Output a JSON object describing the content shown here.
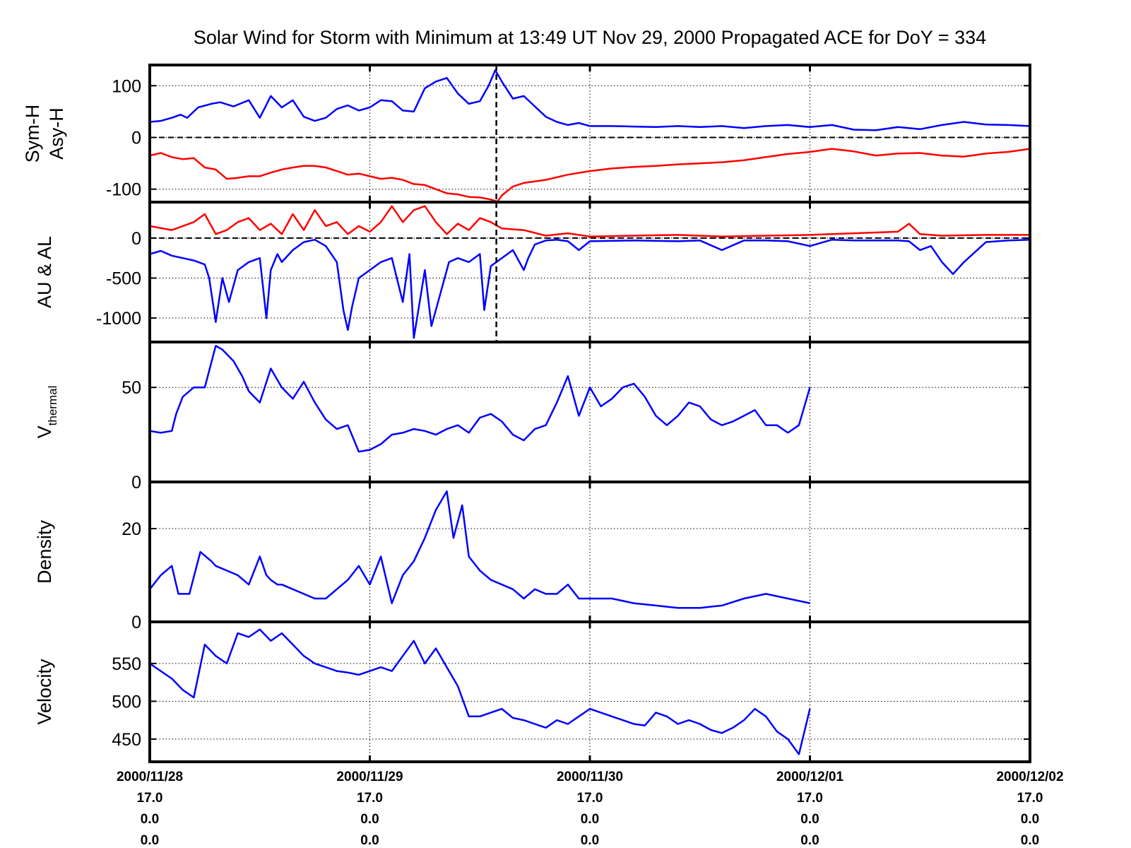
{
  "chart_data": {
    "type": "line",
    "title": "Solar Wind for Storm with Minimum at 13:49 UT Nov 29, 2000  Propagated ACE for DoY = 334",
    "x_axis": {
      "range_days": [
        0,
        4
      ],
      "ticks": [
        {
          "day": 0,
          "lines": [
            "2000/11/28",
            "17.0",
            "0.0",
            "0.0"
          ]
        },
        {
          "day": 1,
          "lines": [
            "2000/11/29",
            "17.0",
            "0.0",
            "0.0"
          ]
        },
        {
          "day": 2,
          "lines": [
            "2000/11/30",
            "17.0",
            "0.0",
            "0.0"
          ]
        },
        {
          "day": 3,
          "lines": [
            "2000/12/01",
            "17.0",
            "0.0",
            "0.0"
          ]
        },
        {
          "day": 4,
          "lines": [
            "2000/12/02",
            "17.0",
            "0.0",
            "0.0"
          ]
        }
      ],
      "grid": true
    },
    "event_marker_day": 1.575,
    "panels": [
      {
        "id": "symh",
        "ylabel_lines": [
          "Sym-H",
          "Asy-H"
        ],
        "ylim": [
          -125,
          140
        ],
        "yticks": [
          -100,
          0,
          100
        ],
        "ytick_labels": [
          "-100",
          "0",
          "100"
        ],
        "zero_line": true,
        "series": [
          {
            "color": "#0000ff",
            "x": [
              0,
              0.05,
              0.1,
              0.14,
              0.17,
              0.22,
              0.28,
              0.32,
              0.38,
              0.45,
              0.5,
              0.55,
              0.6,
              0.65,
              0.7,
              0.75,
              0.8,
              0.85,
              0.9,
              0.95,
              1.0,
              1.05,
              1.1,
              1.15,
              1.2,
              1.25,
              1.3,
              1.35,
              1.4,
              1.45,
              1.5,
              1.54,
              1.57,
              1.6,
              1.65,
              1.7,
              1.75,
              1.8,
              1.85,
              1.9,
              1.95,
              2.0,
              2.1,
              2.2,
              2.3,
              2.4,
              2.5,
              2.6,
              2.7,
              2.8,
              2.9,
              3.0,
              3.1,
              3.2,
              3.3,
              3.4,
              3.5,
              3.6,
              3.7,
              3.8,
              3.9,
              4.0
            ],
            "y": [
              30,
              32,
              38,
              44,
              38,
              58,
              65,
              68,
              60,
              72,
              38,
              80,
              58,
              72,
              40,
              32,
              38,
              55,
              62,
              52,
              58,
              72,
              70,
              52,
              50,
              95,
              108,
              115,
              85,
              65,
              70,
              100,
              130,
              108,
              75,
              80,
              60,
              40,
              30,
              24,
              28,
              22,
              22,
              21,
              20,
              22,
              20,
              22,
              18,
              22,
              24,
              20,
              24,
              15,
              14,
              20,
              16,
              24,
              30,
              25,
              24,
              22
            ]
          },
          {
            "color": "#ff0000",
            "x": [
              0,
              0.05,
              0.1,
              0.15,
              0.2,
              0.25,
              0.3,
              0.35,
              0.4,
              0.45,
              0.5,
              0.55,
              0.6,
              0.65,
              0.7,
              0.75,
              0.8,
              0.85,
              0.9,
              0.95,
              1.0,
              1.05,
              1.1,
              1.15,
              1.2,
              1.25,
              1.3,
              1.35,
              1.4,
              1.45,
              1.5,
              1.55,
              1.58,
              1.6,
              1.65,
              1.7,
              1.8,
              1.9,
              2.0,
              2.1,
              2.2,
              2.3,
              2.4,
              2.5,
              2.6,
              2.7,
              2.8,
              2.9,
              3.0,
              3.05,
              3.1,
              3.2,
              3.3,
              3.4,
              3.5,
              3.6,
              3.7,
              3.8,
              3.9,
              4.0
            ],
            "y": [
              -35,
              -30,
              -38,
              -42,
              -40,
              -58,
              -62,
              -80,
              -78,
              -75,
              -75,
              -68,
              -62,
              -58,
              -55,
              -55,
              -58,
              -65,
              -72,
              -70,
              -75,
              -80,
              -78,
              -82,
              -90,
              -92,
              -100,
              -108,
              -110,
              -115,
              -116,
              -120,
              -124,
              -112,
              -95,
              -88,
              -82,
              -72,
              -65,
              -60,
              -57,
              -55,
              -52,
              -50,
              -48,
              -44,
              -38,
              -32,
              -28,
              -25,
              -22,
              -27,
              -35,
              -31,
              -30,
              -35,
              -37,
              -31,
              -28,
              -22
            ]
          }
        ]
      },
      {
        "id": "aual",
        "ylabel_lines": [
          "AU & AL"
        ],
        "ylim": [
          -1300,
          450
        ],
        "yticks": [
          -1000,
          -500,
          0
        ],
        "ytick_labels": [
          "-1000",
          "-500",
          "0"
        ],
        "zero_line": true,
        "series": [
          {
            "color": "#0000ff",
            "x": [
              0,
              0.05,
              0.1,
              0.15,
              0.2,
              0.25,
              0.27,
              0.3,
              0.33,
              0.36,
              0.4,
              0.45,
              0.5,
              0.53,
              0.55,
              0.58,
              0.6,
              0.65,
              0.7,
              0.75,
              0.8,
              0.85,
              0.88,
              0.9,
              0.92,
              0.95,
              1.0,
              1.05,
              1.1,
              1.15,
              1.18,
              1.2,
              1.25,
              1.28,
              1.32,
              1.36,
              1.4,
              1.45,
              1.5,
              1.52,
              1.55,
              1.6,
              1.65,
              1.7,
              1.72,
              1.75,
              1.8,
              1.85,
              1.9,
              1.95,
              2.0,
              2.2,
              2.4,
              2.5,
              2.6,
              2.7,
              2.8,
              2.9,
              3.0,
              3.1,
              3.2,
              3.3,
              3.4,
              3.45,
              3.5,
              3.55,
              3.6,
              3.65,
              3.7,
              3.8,
              3.9,
              4.0
            ],
            "y": [
              -200,
              -160,
              -220,
              -250,
              -280,
              -330,
              -500,
              -1050,
              -500,
              -800,
              -400,
              -300,
              -250,
              -1000,
              -400,
              -200,
              -300,
              -150,
              -50,
              -20,
              -100,
              -300,
              -900,
              -1150,
              -850,
              -500,
              -400,
              -300,
              -250,
              -800,
              -200,
              -1250,
              -400,
              -1100,
              -700,
              -300,
              -250,
              -300,
              -200,
              -900,
              -350,
              -250,
              -150,
              -400,
              -250,
              -80,
              -30,
              -20,
              -40,
              -150,
              -40,
              -30,
              -40,
              -30,
              -150,
              -30,
              -30,
              -40,
              -100,
              -20,
              -30,
              -30,
              -30,
              -40,
              -150,
              -100,
              -300,
              -450,
              -300,
              -50,
              -30,
              -20
            ]
          },
          {
            "color": "#ff0000",
            "x": [
              0,
              0.1,
              0.2,
              0.25,
              0.3,
              0.35,
              0.4,
              0.45,
              0.5,
              0.55,
              0.6,
              0.65,
              0.7,
              0.75,
              0.8,
              0.85,
              0.9,
              0.95,
              1.0,
              1.05,
              1.1,
              1.15,
              1.2,
              1.25,
              1.3,
              1.35,
              1.4,
              1.45,
              1.5,
              1.55,
              1.6,
              1.7,
              1.8,
              1.9,
              2.0,
              2.2,
              2.4,
              2.6,
              2.8,
              3.0,
              3.2,
              3.4,
              3.45,
              3.5,
              3.6,
              3.8,
              4.0
            ],
            "y": [
              150,
              100,
              200,
              300,
              50,
              100,
              200,
              250,
              100,
              180,
              50,
              300,
              100,
              350,
              150,
              200,
              50,
              150,
              80,
              200,
              400,
              200,
              350,
              400,
              200,
              50,
              180,
              100,
              250,
              200,
              120,
              100,
              30,
              60,
              20,
              30,
              40,
              20,
              30,
              40,
              60,
              80,
              180,
              50,
              30,
              40,
              40
            ]
          }
        ]
      },
      {
        "id": "vthermal",
        "ylabel_lines": [
          "V"
        ],
        "ylabel_sub": "thermal",
        "ylim": [
          0,
          74
        ],
        "yticks": [
          0,
          50
        ],
        "ytick_labels": [
          "0",
          "50"
        ],
        "zero_line": false,
        "series": [
          {
            "color": "#0000ff",
            "x": [
              0,
              0.05,
              0.1,
              0.12,
              0.15,
              0.2,
              0.25,
              0.3,
              0.33,
              0.38,
              0.42,
              0.45,
              0.5,
              0.55,
              0.6,
              0.65,
              0.7,
              0.75,
              0.8,
              0.85,
              0.9,
              0.95,
              1.0,
              1.05,
              1.1,
              1.15,
              1.2,
              1.25,
              1.3,
              1.35,
              1.4,
              1.45,
              1.5,
              1.55,
              1.6,
              1.65,
              1.7,
              1.75,
              1.8,
              1.85,
              1.9,
              1.95,
              2.0,
              2.05,
              2.1,
              2.15,
              2.2,
              2.25,
              2.3,
              2.35,
              2.4,
              2.45,
              2.5,
              2.55,
              2.6,
              2.65,
              2.7,
              2.75,
              2.8,
              2.85,
              2.9,
              2.95,
              3.0
            ],
            "y": [
              27,
              26,
              27,
              36,
              45,
              50,
              50,
              72,
              70,
              64,
              56,
              48,
              42,
              60,
              50,
              44,
              53,
              42,
              33,
              28,
              30,
              16,
              17,
              20,
              25,
              26,
              28,
              27,
              25,
              28,
              30,
              26,
              34,
              36,
              32,
              25,
              22,
              28,
              30,
              42,
              56,
              35,
              50,
              40,
              44,
              50,
              52,
              45,
              35,
              30,
              35,
              42,
              40,
              33,
              30,
              32,
              35,
              38,
              30,
              30,
              26,
              30,
              50
            ]
          }
        ]
      },
      {
        "id": "density",
        "ylabel_lines": [
          "Density"
        ],
        "ylim": [
          0,
          30
        ],
        "yticks": [
          0,
          20
        ],
        "ytick_labels": [
          "0",
          "20"
        ],
        "zero_line": false,
        "series": [
          {
            "color": "#0000ff",
            "x": [
              0,
              0.05,
              0.1,
              0.13,
              0.18,
              0.23,
              0.28,
              0.3,
              0.35,
              0.4,
              0.45,
              0.5,
              0.53,
              0.55,
              0.58,
              0.6,
              0.65,
              0.7,
              0.75,
              0.8,
              0.85,
              0.9,
              0.95,
              1.0,
              1.05,
              1.1,
              1.15,
              1.2,
              1.25,
              1.3,
              1.35,
              1.38,
              1.42,
              1.45,
              1.5,
              1.55,
              1.6,
              1.65,
              1.7,
              1.75,
              1.8,
              1.85,
              1.9,
              1.95,
              2.0,
              2.1,
              2.2,
              2.3,
              2.4,
              2.5,
              2.6,
              2.7,
              2.8,
              2.9,
              3.0
            ],
            "y": [
              7,
              10,
              12,
              6,
              6,
              15,
              13,
              12,
              11,
              10,
              8,
              14,
              10,
              9,
              8,
              8,
              7,
              6,
              5,
              5,
              7,
              9,
              12,
              8,
              14,
              4,
              10,
              13,
              18,
              24,
              28,
              18,
              25,
              14,
              11,
              9,
              8,
              7,
              5,
              7,
              6,
              6,
              8,
              5,
              5,
              5,
              4,
              3.5,
              3,
              3,
              3.5,
              5,
              6,
              5,
              4
            ]
          }
        ]
      },
      {
        "id": "velocity",
        "ylabel_lines": [
          "Velocity"
        ],
        "ylim": [
          420,
          605
        ],
        "yticks": [
          450,
          500,
          550
        ],
        "ytick_labels": [
          "450",
          "500",
          "550"
        ],
        "zero_line": false,
        "series": [
          {
            "color": "#0000ff",
            "x": [
              0,
              0.05,
              0.1,
              0.15,
              0.2,
              0.25,
              0.3,
              0.35,
              0.4,
              0.45,
              0.5,
              0.55,
              0.6,
              0.65,
              0.7,
              0.75,
              0.8,
              0.85,
              0.9,
              0.95,
              1.0,
              1.05,
              1.1,
              1.15,
              1.2,
              1.25,
              1.3,
              1.35,
              1.4,
              1.45,
              1.5,
              1.55,
              1.6,
              1.65,
              1.7,
              1.75,
              1.8,
              1.85,
              1.9,
              1.95,
              2.0,
              2.05,
              2.1,
              2.15,
              2.2,
              2.25,
              2.3,
              2.35,
              2.4,
              2.45,
              2.5,
              2.55,
              2.6,
              2.65,
              2.7,
              2.75,
              2.8,
              2.85,
              2.9,
              2.95,
              3.0
            ],
            "y": [
              550,
              540,
              530,
              515,
              505,
              575,
              560,
              550,
              590,
              585,
              595,
              580,
              590,
              575,
              560,
              550,
              545,
              540,
              538,
              535,
              540,
              545,
              540,
              560,
              580,
              550,
              570,
              545,
              520,
              480,
              480,
              485,
              490,
              478,
              475,
              470,
              465,
              475,
              470,
              480,
              490,
              485,
              480,
              475,
              470,
              468,
              485,
              480,
              470,
              475,
              470,
              462,
              458,
              465,
              475,
              490,
              480,
              460,
              450,
              430,
              490
            ]
          }
        ]
      }
    ]
  }
}
